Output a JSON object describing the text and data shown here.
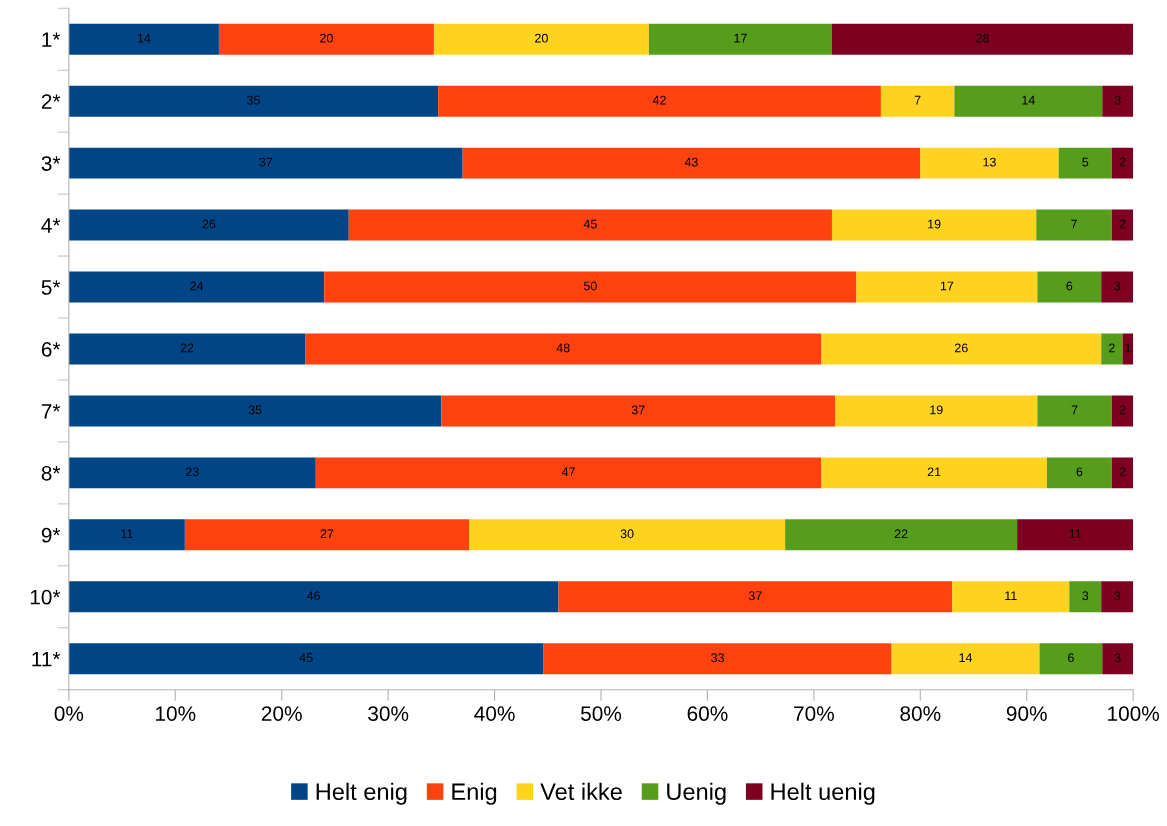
{
  "chart_data": {
    "type": "bar",
    "orientation": "horizontal",
    "stacked": true,
    "categories": [
      "1*",
      "2*",
      "3*",
      "4*",
      "5*",
      "6*",
      "7*",
      "8*",
      "9*",
      "10*",
      "11*"
    ],
    "series": [
      {
        "name": "Helt enig",
        "color": "#004586",
        "values": [
          14.1,
          34.7,
          37,
          26.3,
          24,
          22.2,
          35,
          23.2,
          10.9,
          46,
          44.6
        ],
        "value_labels": [
          "14",
          "35",
          "37",
          "26",
          "24",
          "22",
          "35",
          "23",
          "11",
          "46",
          "45"
        ]
      },
      {
        "name": "Enig",
        "color": "#ff420e",
        "values": [
          20.2,
          41.6,
          43,
          45.4,
          50,
          48.5,
          37,
          47.5,
          26.7,
          37,
          32.7
        ],
        "value_labels": [
          "20",
          "42",
          "43",
          "45",
          "50",
          "48",
          "37",
          "47",
          "27",
          "37",
          "33"
        ]
      },
      {
        "name": "Vet ikke",
        "color": "#ffd320",
        "values": [
          20.2,
          6.9,
          13,
          19.2,
          17,
          26.3,
          19,
          21.2,
          29.7,
          11,
          13.9
        ],
        "value_labels": [
          "20",
          "7",
          "13",
          "19",
          "17",
          "26",
          "19",
          "21",
          "30",
          "11",
          "14"
        ]
      },
      {
        "name": "Uenig",
        "color": "#579d1c",
        "values": [
          17.2,
          13.9,
          5,
          7.1,
          6,
          2.0,
          7,
          6.1,
          21.8,
          3,
          5.9
        ],
        "value_labels": [
          "17",
          "14",
          "5",
          "7",
          "6",
          "2",
          "7",
          "6",
          "22",
          "3",
          "6"
        ]
      },
      {
        "name": "Helt uenig",
        "color": "#7e0021",
        "values": [
          28.3,
          2.9,
          2,
          2.0,
          3,
          1.0,
          2,
          2.0,
          10.9,
          3,
          2.9
        ],
        "value_labels": [
          "28",
          "3",
          "2",
          "2",
          "3",
          "1",
          "2",
          "2",
          "11",
          "3",
          "3"
        ]
      }
    ],
    "xlim": [
      0,
      100
    ],
    "xticks": [
      {
        "value": 0,
        "label": "0%"
      },
      {
        "value": 10,
        "label": "10%"
      },
      {
        "value": 20,
        "label": "20%"
      },
      {
        "value": 30,
        "label": "30%"
      },
      {
        "value": 40,
        "label": "40%"
      },
      {
        "value": 50,
        "label": "50%"
      },
      {
        "value": 60,
        "label": "60%"
      },
      {
        "value": 70,
        "label": "70%"
      },
      {
        "value": 80,
        "label": "80%"
      },
      {
        "value": 90,
        "label": "90%"
      },
      {
        "value": 100,
        "label": "100%"
      }
    ],
    "grid": false,
    "legend": "bottom"
  }
}
